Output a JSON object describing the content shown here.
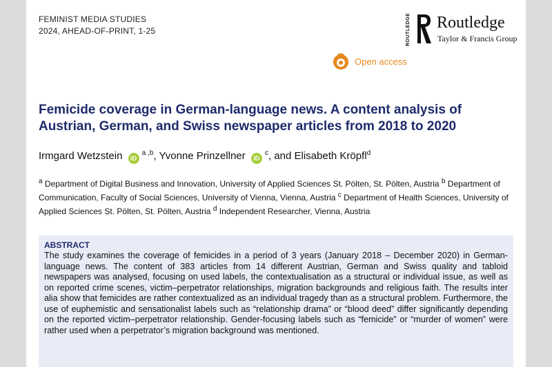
{
  "journal": {
    "name": "FEMINIST MEDIA STUDIES",
    "issue": "2024, AHEAD-OF-PRINT, 1-25"
  },
  "publisher": {
    "vertical_text": "ROUTLEDGE",
    "name": "Routledge",
    "subtitle": "Taylor & Francis Group"
  },
  "open_access": {
    "label": "Open access",
    "icon": "open-access-lock-icon",
    "color": "#e8881c"
  },
  "title": "Femicide coverage in German-language news. A content analysis of Austrian, German, and Swiss newspaper articles from 2018 to 2020",
  "authors": [
    {
      "name": "Irmgard Wetzstein",
      "affiliation": "a ,b",
      "orcid": "iD"
    },
    {
      "separator": ", ",
      "name": "Yvonne Prinzellner",
      "affiliation": "c",
      "orcid": "iD"
    },
    {
      "separator": ", and ",
      "name": "Elisabeth Kröpfl",
      "affiliation": "d"
    }
  ],
  "affiliations": [
    {
      "mark": "a",
      "text": "Department of Digital Business and Innovation, University of Applied Sciences St. Pölten, St. Pölten, Austria"
    },
    {
      "mark": "b",
      "text": "Department of Communication, Faculty of Social Sciences, University of Vienna, Vienna, Austria"
    },
    {
      "mark": "c",
      "text": "Department of Health Sciences, University of Applied Sciences St. Pölten, St. Pölten, Austria"
    },
    {
      "mark": "d",
      "text": "Independent Researcher, Vienna, Austria"
    }
  ],
  "abstract": {
    "heading": "ABSTRACT",
    "text": "The study examines the coverage of femicides in a period of 3 years (January 2018 – December 2020) in German-language news. The content of 383 articles from 14 different Austrian, German and Swiss quality and tabloid newspapers was analysed, focusing on used labels, the contextualisation as a structural or individual issue, as well as on reported crime scenes, victim–perpetrator relationships, migration backgrounds and religious faith. The results inter alia show that femicides are rather contextualized as an individual tragedy than as a structural problem. Furthermore, the use of euphemistic and sensationalist labels such as “relationship drama” or “blood deed” differ significantly depending on the reported victim–perpetrator relationship. Gender-focusing labels such as “femicide” or “murder of women” were rather used when a perpetrator’s migration background was mentioned."
  },
  "colors": {
    "title": "#1f2a6b",
    "orcid": "#a6ce39",
    "abstract_bg": "#e9ecf6"
  }
}
